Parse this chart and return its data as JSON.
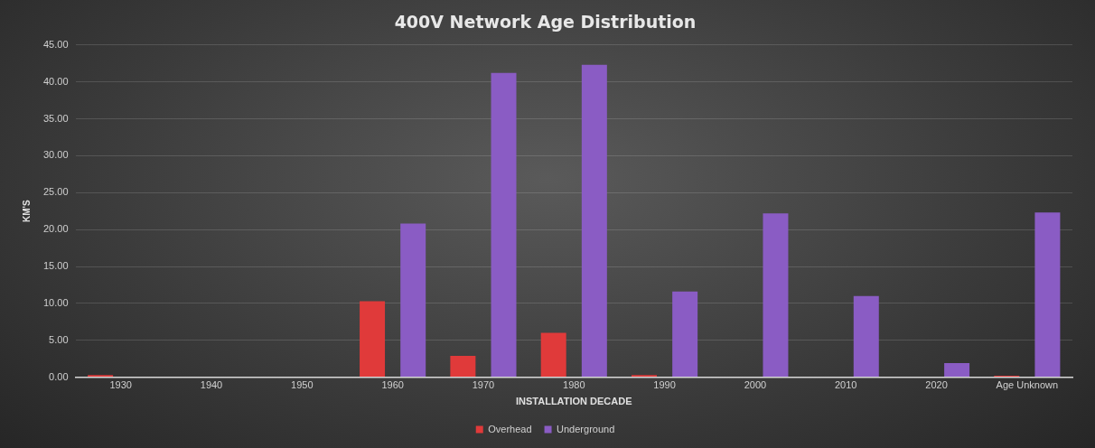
{
  "chart_data": {
    "type": "bar",
    "title": "400V Network Age Distribution",
    "xlabel": "INSTALLATION DECADE",
    "ylabel": "KM'S",
    "categories": [
      "1930",
      "1940",
      "1950",
      "1960",
      "1970",
      "1980",
      "1990",
      "2000",
      "2010",
      "2020",
      "Age Unknown"
    ],
    "series": [
      {
        "name": "Overhead",
        "color": "#e03a3a",
        "values": [
          0.3,
          0,
          0,
          10.3,
          2.9,
          6.0,
          0.3,
          0,
          0,
          0,
          0.2
        ]
      },
      {
        "name": "Underground",
        "color": "#8a5cc4",
        "values": [
          0,
          0,
          0,
          20.8,
          41.2,
          42.3,
          11.6,
          22.2,
          11.0,
          1.9,
          22.3
        ]
      }
    ],
    "ylim": [
      0,
      45
    ],
    "yticks": [
      {
        "value": 0,
        "label": "0.00"
      },
      {
        "value": 5,
        "label": "5.00"
      },
      {
        "value": 10,
        "label": "10.00"
      },
      {
        "value": 15,
        "label": "15.00"
      },
      {
        "value": 20,
        "label": "20.00"
      },
      {
        "value": 25,
        "label": "25.00"
      },
      {
        "value": 30,
        "label": "30.00"
      },
      {
        "value": 35,
        "label": "35.00"
      },
      {
        "value": 40,
        "label": "40.00"
      },
      {
        "value": 45,
        "label": "45.00"
      }
    ],
    "grid": "y",
    "legend": "bottom"
  }
}
